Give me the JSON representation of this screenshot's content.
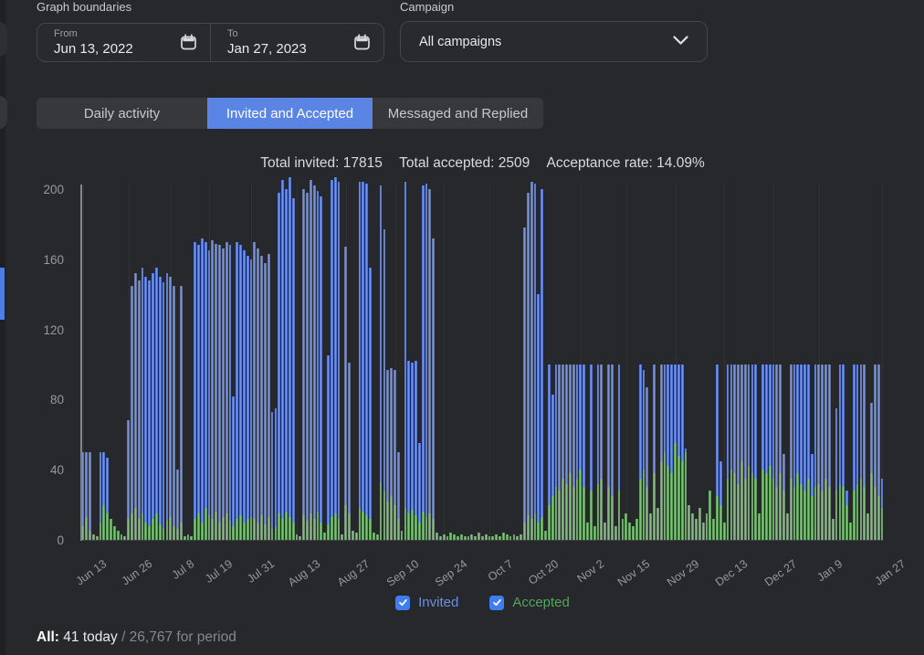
{
  "filters": {
    "graph_boundaries_label": "Graph boundaries",
    "from_label": "From",
    "from_value": "Jun 13, 2022",
    "to_label": "To",
    "to_value": "Jan 27, 2023",
    "campaign_label": "Campaign",
    "campaign_value": "All campaigns"
  },
  "tabs": [
    {
      "label": "Daily activity",
      "active": false
    },
    {
      "label": "Invited and Accepted",
      "active": true
    },
    {
      "label": "Messaged and Replied",
      "active": false
    }
  ],
  "summary": {
    "total_invited": "Total invited: 17815",
    "total_accepted": "Total accepted: 2509",
    "acceptance_rate": "Acceptance rate: 14.09%"
  },
  "legend": {
    "invited_label": "Invited",
    "accepted_label": "Accepted",
    "invited_checked": true,
    "accepted_checked": true,
    "checkbox_color": "#3f7ef0"
  },
  "footer": {
    "all_label": "All:",
    "today_text": " 41 today ",
    "period_text": "/ 26,767 for period"
  },
  "colors": {
    "background": "#26282b",
    "accent_blue": "#5b85e4",
    "bar_invited": "#5d80da",
    "bar_accepted": "#72b06c",
    "legend_invited_text": "#6b90e8",
    "legend_accepted_text": "#57a35f"
  },
  "chart_data": {
    "type": "bar",
    "x_range": [
      "Jun 13, 2022",
      "Jan 27, 2023"
    ],
    "ylim": [
      0,
      200
    ],
    "y_ticks": [
      0,
      40,
      80,
      120,
      160,
      200
    ],
    "grid": "vertical",
    "legend_position": "bottom",
    "x_ticks": [
      {
        "i": 0,
        "label": "Jun 13"
      },
      {
        "i": 13,
        "label": "Jun 26"
      },
      {
        "i": 25,
        "label": "Jul 8"
      },
      {
        "i": 36,
        "label": "Jul 19"
      },
      {
        "i": 48,
        "label": "Jul 31"
      },
      {
        "i": 61,
        "label": "Aug 13"
      },
      {
        "i": 75,
        "label": "Aug 27"
      },
      {
        "i": 89,
        "label": "Sep 10"
      },
      {
        "i": 103,
        "label": "Sep 24"
      },
      {
        "i": 116,
        "label": "Oct 7"
      },
      {
        "i": 129,
        "label": "Oct 20"
      },
      {
        "i": 142,
        "label": "Nov 2"
      },
      {
        "i": 155,
        "label": "Nov 15"
      },
      {
        "i": 169,
        "label": "Nov 29"
      },
      {
        "i": 183,
        "label": "Dec 13"
      },
      {
        "i": 197,
        "label": "Dec 27"
      },
      {
        "i": 210,
        "label": "Jan 9"
      },
      {
        "i": 228,
        "label": "Jan 27"
      }
    ],
    "series": [
      {
        "name": "Invited",
        "color": "#5d80da",
        "values": [
          50,
          50,
          50,
          0,
          0,
          50,
          50,
          47,
          0,
          0,
          0,
          0,
          0,
          68,
          145,
          152,
          148,
          155,
          150,
          148,
          152,
          155,
          150,
          147,
          152,
          150,
          145,
          40,
          145,
          0,
          0,
          0,
          170,
          168,
          172,
          170,
          165,
          171,
          169,
          168,
          166,
          170,
          168,
          82,
          170,
          168,
          165,
          162,
          160,
          170,
          166,
          162,
          158,
          163,
          73,
          75,
          198,
          205,
          200,
          207,
          195,
          0,
          0,
          200,
          198,
          205,
          202,
          199,
          196,
          0,
          105,
          205,
          207,
          204,
          0,
          167,
          101,
          0,
          0,
          204,
          204,
          203,
          155,
          0,
          0,
          202,
          177,
          97,
          98,
          97,
          50,
          0,
          204,
          102,
          101,
          102,
          55,
          202,
          203,
          200,
          172,
          0,
          0,
          0,
          0,
          0,
          0,
          0,
          0,
          0,
          0,
          0,
          0,
          0,
          0,
          0,
          0,
          0,
          0,
          0,
          0,
          0,
          0,
          0,
          0,
          0,
          178,
          198,
          204,
          203,
          140,
          200,
          0,
          100,
          83,
          100,
          100,
          100,
          100,
          100,
          100,
          100,
          100,
          100,
          0,
          100,
          0,
          100,
          100,
          0,
          100,
          100,
          0,
          100,
          0,
          0,
          0,
          0,
          0,
          100,
          97,
          87,
          0,
          100,
          0,
          100,
          100,
          100,
          100,
          100,
          100,
          100,
          52,
          0,
          0,
          0,
          0,
          0,
          0,
          0,
          0,
          100,
          45,
          0,
          100,
          100,
          100,
          100,
          100,
          100,
          100,
          100,
          100,
          0,
          100,
          100,
          100,
          100,
          100,
          100,
          49,
          0,
          100,
          100,
          100,
          100,
          100,
          100,
          49,
          100,
          100,
          100,
          100,
          100,
          0,
          75,
          100,
          100,
          28,
          0,
          100,
          100,
          100,
          100,
          0,
          78,
          100,
          100,
          35
        ]
      },
      {
        "name": "Accepted",
        "color": "#72b06c",
        "values": [
          8,
          13,
          5,
          3,
          2,
          10,
          20,
          15,
          12,
          8,
          5,
          3,
          2,
          12,
          15,
          18,
          12,
          15,
          10,
          8,
          12,
          15,
          9,
          7,
          11,
          13,
          8,
          6,
          10,
          2,
          3,
          2,
          12,
          15,
          10,
          18,
          14,
          12,
          16,
          10,
          13,
          15,
          11,
          8,
          12,
          14,
          10,
          12,
          13,
          12,
          10,
          14,
          9,
          13,
          6,
          8,
          15,
          12,
          16,
          13,
          10,
          3,
          2,
          14,
          11,
          15,
          12,
          16,
          10,
          4,
          9,
          13,
          15,
          12,
          3,
          20,
          15,
          5,
          4,
          18,
          16,
          14,
          12,
          4,
          3,
          33,
          28,
          22,
          25,
          20,
          12,
          5,
          18,
          15,
          17,
          14,
          10,
          16,
          13,
          15,
          12,
          4,
          2,
          3,
          2,
          4,
          3,
          2,
          3,
          2,
          2,
          3,
          2,
          4,
          2,
          3,
          2,
          2,
          3,
          2,
          4,
          3,
          2,
          3,
          2,
          3,
          10,
          14,
          12,
          15,
          10,
          13,
          5,
          20,
          25,
          30,
          28,
          35,
          32,
          38,
          30,
          35,
          40,
          30,
          10,
          28,
          8,
          32,
          35,
          10,
          30,
          25,
          8,
          28,
          12,
          15,
          10,
          8,
          12,
          35,
          40,
          30,
          15,
          38,
          18,
          45,
          50,
          42,
          38,
          55,
          48,
          45,
          50,
          20,
          15,
          12,
          18,
          10,
          15,
          28,
          12,
          25,
          20,
          10,
          35,
          40,
          38,
          32,
          45,
          35,
          42,
          38,
          35,
          15,
          40,
          38,
          42,
          35,
          30,
          38,
          28,
          15,
          35,
          30,
          38,
          32,
          28,
          35,
          25,
          30,
          32,
          28,
          35,
          30,
          12,
          28,
          32,
          30,
          20,
          10,
          28,
          32,
          35,
          30,
          15,
          38,
          30,
          25,
          18
        ]
      }
    ]
  }
}
